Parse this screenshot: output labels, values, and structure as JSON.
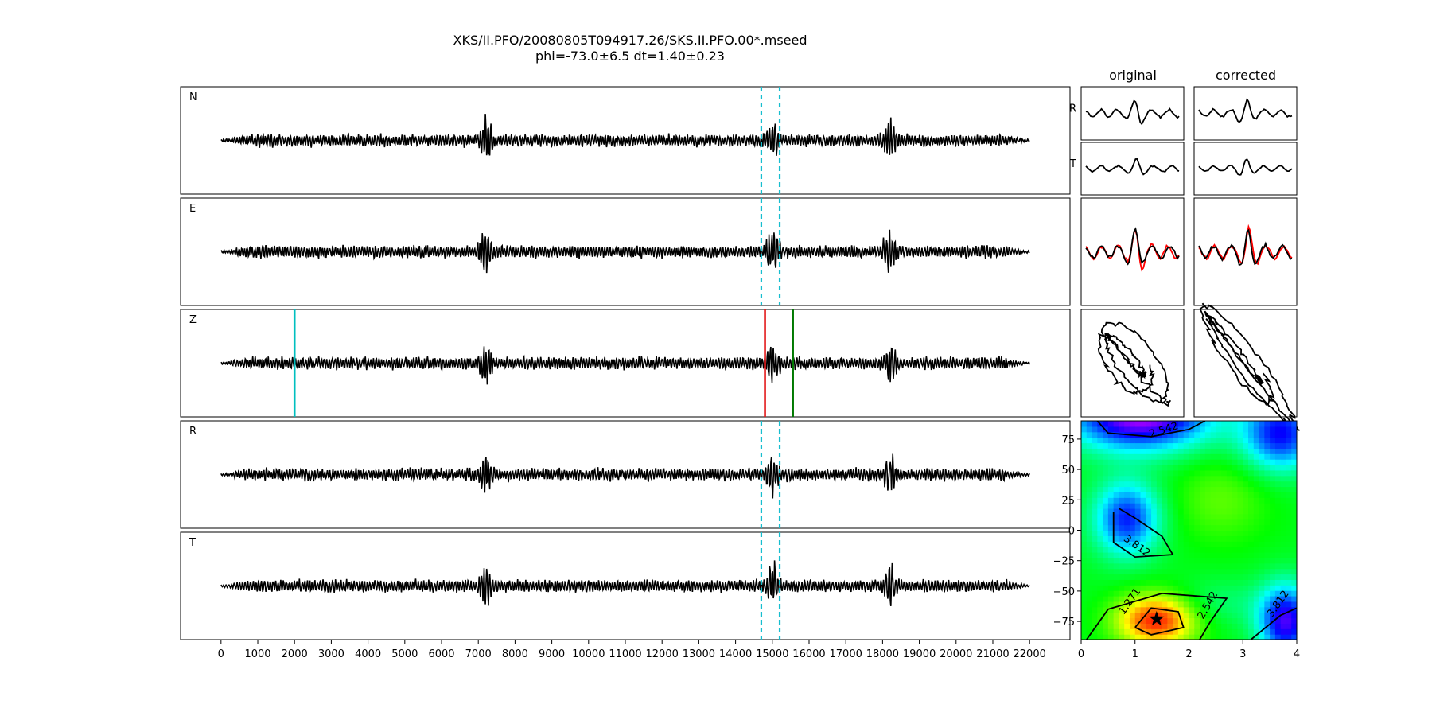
{
  "title": "XKS/II.PFO/20080805T094917.26/SKS.II.PFO.00*.mseed",
  "subtitle": "phi=-73.0±6.5 dt=1.40±0.23",
  "colors": {
    "trace": "#000000",
    "window": "#17becf",
    "marker_cyan": "#00bfbf",
    "marker_red": "#e31a1c",
    "marker_green": "#007a00",
    "rotated_red": "#ff0000"
  },
  "chart_data": [
    {
      "type": "line",
      "panel": "seismograms",
      "traces": [
        "N",
        "E",
        "Z",
        "R",
        "T"
      ],
      "xlim": [
        -1100,
        23100
      ],
      "xticks": [
        0,
        1000,
        2000,
        3000,
        4000,
        5000,
        6000,
        7000,
        8000,
        9000,
        10000,
        11000,
        12000,
        13000,
        14000,
        15000,
        16000,
        17000,
        18000,
        19000,
        20000,
        21000,
        22000
      ],
      "trace_extent": [
        0,
        22000
      ],
      "window": {
        "start": 14700,
        "end": 15200,
        "style": "dashed",
        "panels": [
          "N",
          "E",
          "R",
          "T"
        ]
      },
      "markers_on_Z": [
        {
          "x": 2000,
          "color": "cyan"
        },
        {
          "x": 14800,
          "color": "red"
        },
        {
          "x": 15560,
          "color": "green"
        }
      ],
      "bursts": [
        7200,
        15000,
        18200
      ]
    },
    {
      "type": "line",
      "panel": "particle-motion",
      "column_headers": [
        "original",
        "corrected"
      ],
      "row_labels": [
        "R",
        "T"
      ]
    },
    {
      "type": "heatmap",
      "panel": "error-surface",
      "xlim": [
        0,
        4
      ],
      "ylim": [
        -90,
        90
      ],
      "xticks": [
        0,
        1,
        2,
        3,
        4
      ],
      "yticks": [
        75,
        50,
        25,
        0,
        -25,
        -50,
        -75
      ],
      "contour_labels": [
        "2.542",
        "3.812",
        "1.271",
        "2.542",
        "3.812"
      ],
      "best_fit": {
        "dt": 1.4,
        "phi": -73.0
      }
    }
  ]
}
